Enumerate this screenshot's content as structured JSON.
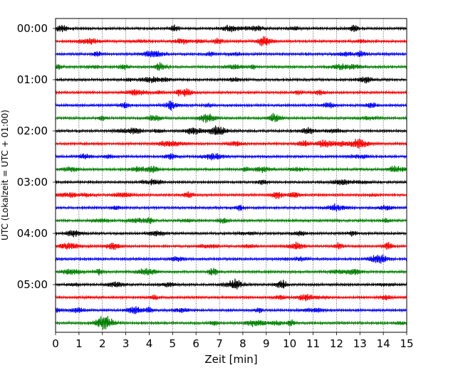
{
  "chart_data": {
    "type": "line",
    "title": "",
    "xlabel": "Zeit  [min]",
    "ylabel": "UTC (Lokalzeit = UTC + 01:00)",
    "xlim": [
      0,
      15
    ],
    "x_ticks": [
      0,
      1,
      2,
      3,
      4,
      5,
      6,
      7,
      8,
      9,
      10,
      11,
      12,
      13,
      14,
      15
    ],
    "y_tick_labels": [
      "00:00",
      "01:00",
      "02:00",
      "03:00",
      "04:00",
      "05:00"
    ],
    "y_tick_trace_index": [
      0,
      4,
      8,
      12,
      16,
      20
    ],
    "trace_count": 24,
    "trace_interval_minutes": 15,
    "trace_colors": [
      "#000000",
      "#ff0000",
      "#0000ff",
      "#008000"
    ],
    "grid": {
      "vertical": true,
      "style": "dotted"
    },
    "legend": "none"
  }
}
